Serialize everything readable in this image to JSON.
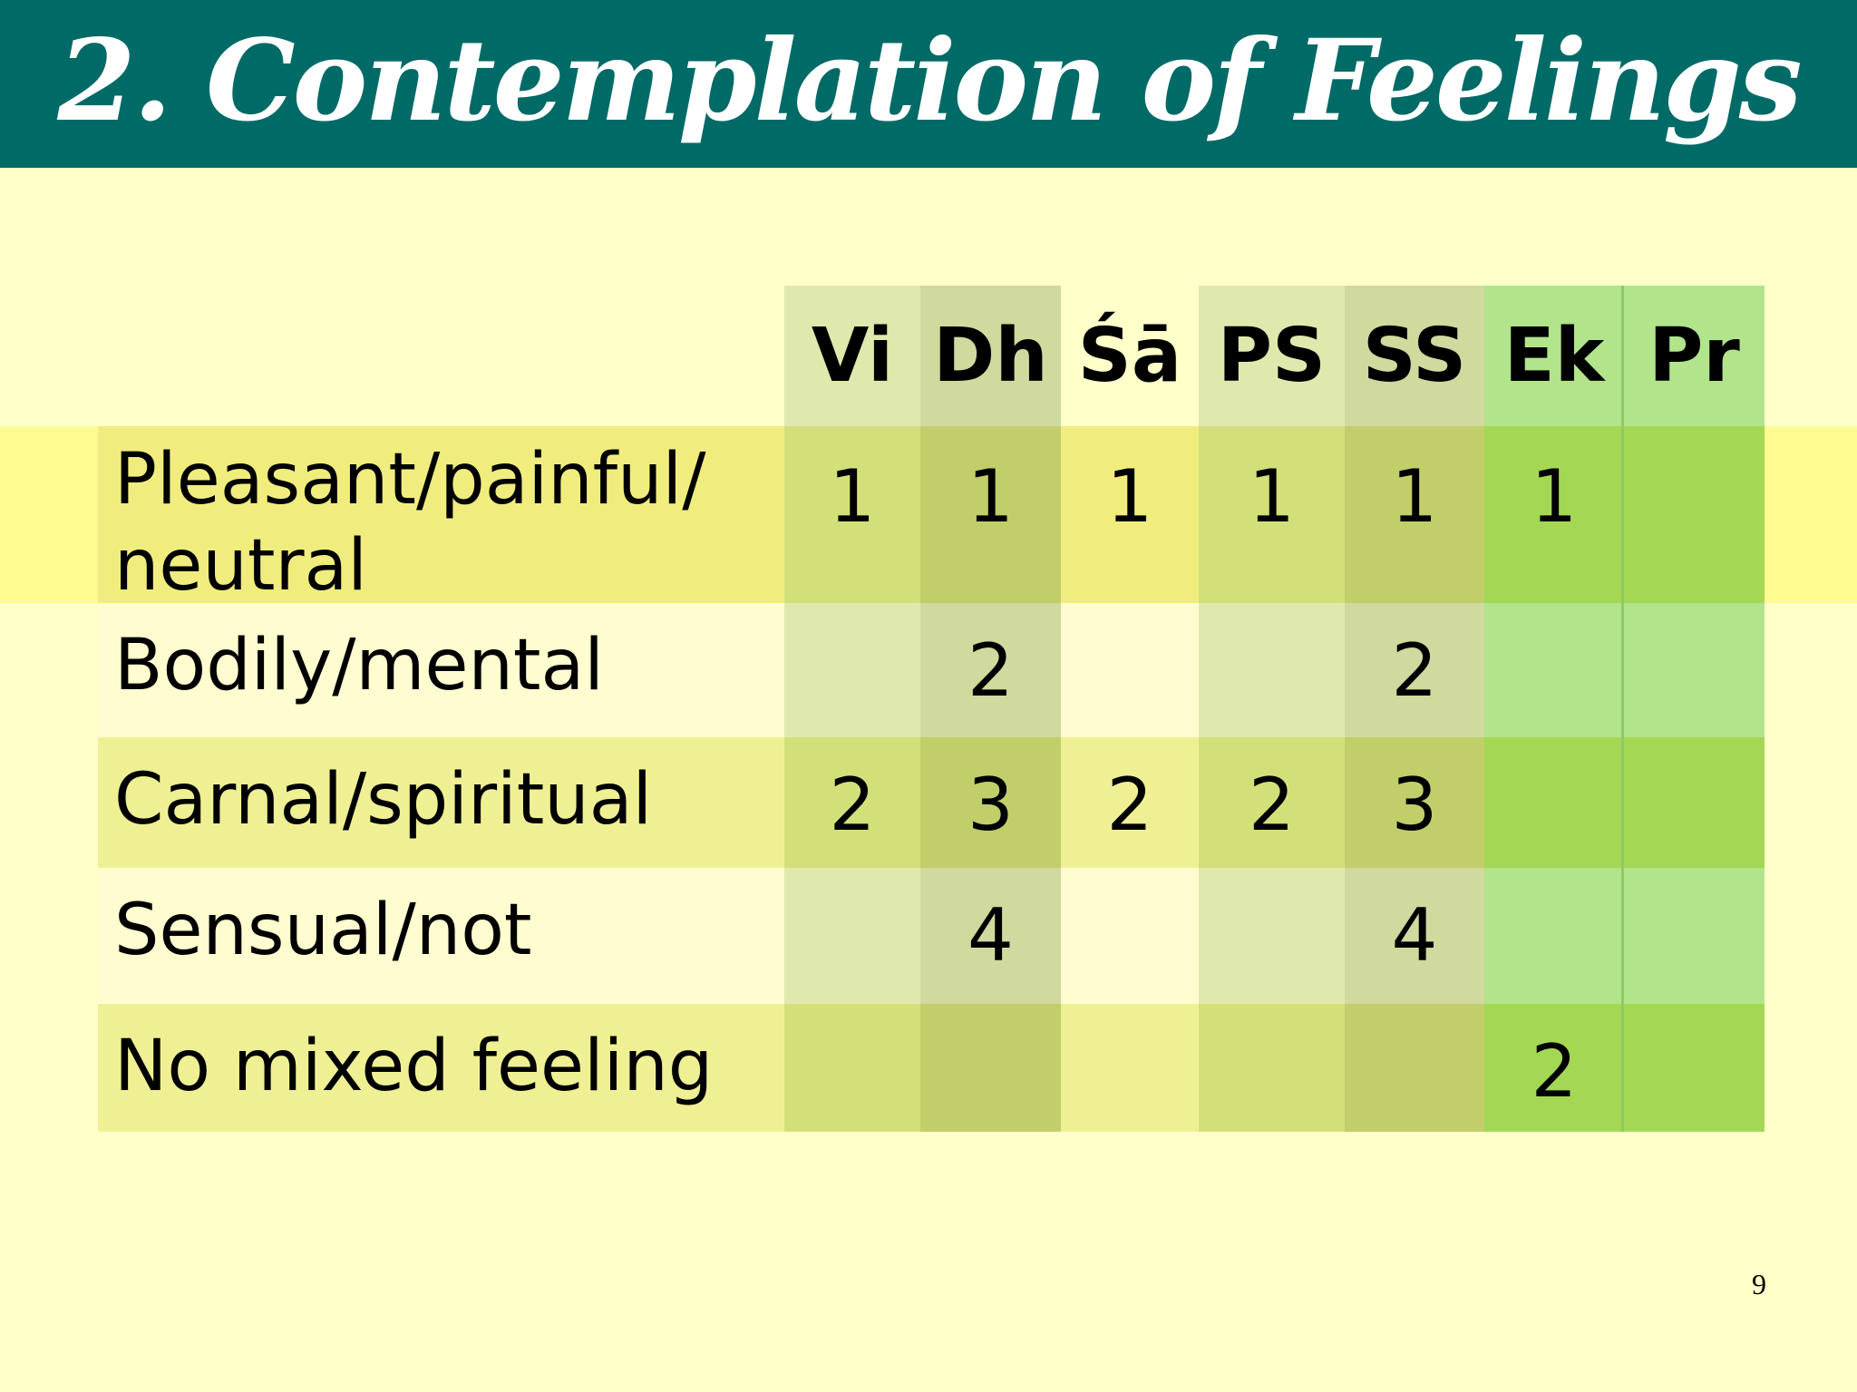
{
  "title": "2. Contemplation of Feelings",
  "columns": [
    "Vi",
    "Dh",
    "Śā",
    "PS",
    "SS",
    "Ek",
    "Pr"
  ],
  "rows": [
    {
      "label": "Pleasant/painful/\nneutral",
      "cells": [
        "1",
        "1",
        "1",
        "1",
        "1",
        "1",
        ""
      ]
    },
    {
      "label": "Bodily/mental",
      "cells": [
        "",
        "2",
        "",
        "",
        "2",
        "",
        ""
      ]
    },
    {
      "label": "Carnal/spiritual",
      "cells": [
        "2",
        "3",
        "2",
        "2",
        "3",
        "",
        ""
      ]
    },
    {
      "label": "Sensual/not",
      "cells": [
        "",
        "4",
        "",
        "",
        "4",
        "",
        ""
      ]
    },
    {
      "label": "No mixed feeling",
      "cells": [
        "",
        "",
        "",
        "",
        "",
        "2",
        ""
      ]
    }
  ],
  "page_number": "9",
  "colors": {
    "title_bar": "#006a66",
    "background": "#ffffc9",
    "highlight_band": "#fefb90"
  }
}
